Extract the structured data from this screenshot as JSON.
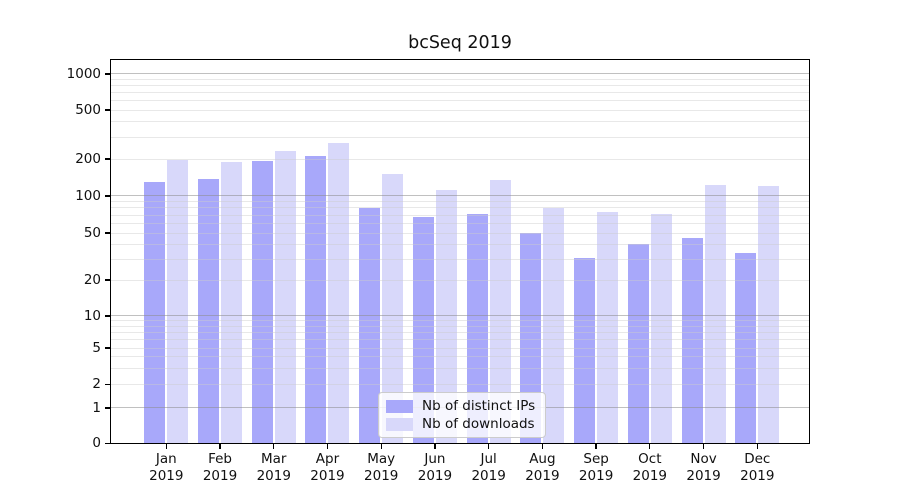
{
  "chart_data": {
    "type": "bar",
    "title": "bcSeq 2019",
    "categories": {
      "months": [
        "Jan",
        "Feb",
        "Mar",
        "Apr",
        "May",
        "Jun",
        "Jul",
        "Aug",
        "Sep",
        "Oct",
        "Nov",
        "Dec"
      ],
      "year": "2019"
    },
    "series": [
      {
        "name": "Nb of distinct IPs",
        "color": "#a8a8fa",
        "values": [
          130,
          138,
          193,
          213,
          80,
          67,
          71,
          50,
          31,
          40,
          45,
          34
        ]
      },
      {
        "name": "Nb of downloads",
        "color": "#d8d8fa",
        "values": [
          197,
          188,
          232,
          270,
          150,
          112,
          136,
          80,
          74,
          72,
          123,
          120
        ]
      }
    ],
    "y_axis": {
      "scale": "log-like with linear segment below 1",
      "ticks": [
        {
          "value": 0,
          "label": "0"
        },
        {
          "value": 1,
          "label": "1"
        },
        {
          "value": 2,
          "label": "2"
        },
        {
          "value": 5,
          "label": "5"
        },
        {
          "value": 10,
          "label": "10"
        },
        {
          "value": 20,
          "label": "20"
        },
        {
          "value": 50,
          "label": "50"
        },
        {
          "value": 100,
          "label": "100"
        },
        {
          "value": 200,
          "label": "200"
        },
        {
          "value": 500,
          "label": "500"
        },
        {
          "value": 1000,
          "label": "1000"
        }
      ],
      "ylim": [
        0,
        1000
      ],
      "grid": "on, minor light lines at 2-9 per decade, darker lines at powers of 10"
    },
    "legend": {
      "position": "lower center",
      "entries": [
        "Nb of distinct IPs",
        "Nb of downloads"
      ]
    }
  },
  "colors": {
    "distinct_ips_bar": "#a8a8fa",
    "downloads_bar": "#d8d8fa",
    "major_gridline": "#c0c0c0",
    "minor_gridline": "#e8e8e8",
    "axis": "#000000",
    "legend_border": "#cccccc"
  }
}
